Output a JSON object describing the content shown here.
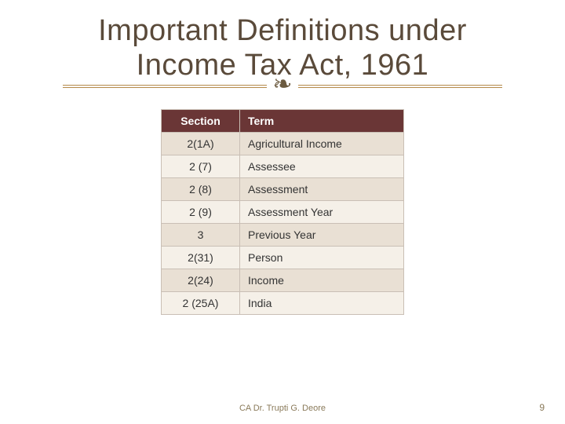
{
  "title_line1": "Important Definitions under",
  "title_line2": "Income Tax Act, 1961",
  "flourish_glyph": "❧",
  "table": {
    "columns": [
      "Section",
      "Term"
    ],
    "rows": [
      [
        "2(1A)",
        "Agricultural Income"
      ],
      [
        "2 (7)",
        "Assessee"
      ],
      [
        "2 (8)",
        "Assessment"
      ],
      [
        "2 (9)",
        "Assessment Year"
      ],
      [
        "3",
        "Previous Year"
      ],
      [
        "2(31)",
        "Person"
      ],
      [
        "2(24)",
        "Income"
      ],
      [
        "2 (25A)",
        "India"
      ]
    ]
  },
  "footer_text": "CA Dr. Trupti G. Deore",
  "page_number": "9",
  "colors": {
    "title": "#5a4a3a",
    "divider": "#b58a4a",
    "header_bg": "#6a3636",
    "header_fg": "#ffffff",
    "row_odd": "#e9e0d4",
    "row_even": "#f5f0e8",
    "border": "#c9bfb5",
    "footer": "#8a7a5a"
  }
}
